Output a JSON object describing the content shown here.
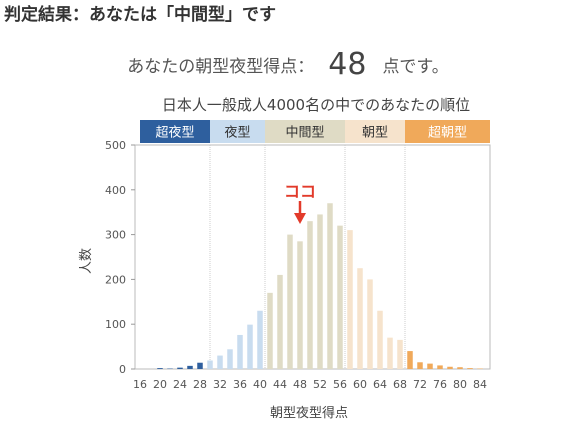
{
  "heading": "判定結果：あなたは「中間型」です",
  "score": {
    "prefix": "あなたの朝型夜型得点：",
    "value": "48",
    "suffix": "点です。"
  },
  "chart_data": {
    "type": "bar",
    "title": "日本人一般成人4000名の中でのあなたの順位",
    "xlabel": "朝型夜型得点",
    "ylabel": "人数",
    "ylim": [
      0,
      500
    ],
    "yticks": [
      0,
      100,
      200,
      300,
      400,
      500
    ],
    "xticks": [
      16,
      20,
      24,
      28,
      32,
      36,
      40,
      44,
      48,
      52,
      56,
      60,
      64,
      68,
      72,
      76,
      80,
      84
    ],
    "x": [
      16,
      18,
      20,
      22,
      24,
      26,
      28,
      30,
      32,
      34,
      36,
      38,
      40,
      42,
      44,
      46,
      48,
      50,
      52,
      54,
      56,
      58,
      60,
      62,
      64,
      66,
      68,
      70,
      72,
      74,
      76,
      78,
      80,
      82,
      84
    ],
    "values": [
      0,
      0,
      2,
      1,
      3,
      7,
      14,
      19,
      30,
      44,
      76,
      99,
      130,
      170,
      210,
      300,
      285,
      330,
      345,
      370,
      320,
      310,
      225,
      200,
      130,
      70,
      65,
      40,
      15,
      12,
      8,
      5,
      4,
      2,
      1
    ],
    "categories_bands": [
      {
        "label": "超夜型",
        "start": 16,
        "end": 30,
        "color": "#2e5f9e",
        "text_color": "#ffffff"
      },
      {
        "label": "夜型",
        "start": 30,
        "end": 41,
        "color": "#c8dcef",
        "text_color": "#333333"
      },
      {
        "label": "中間型",
        "start": 41,
        "end": 57,
        "color": "#dfdbc5",
        "text_color": "#333333"
      },
      {
        "label": "朝型",
        "start": 57,
        "end": 69,
        "color": "#f6e3cc",
        "text_color": "#333333"
      },
      {
        "label": "超朝型",
        "start": 69,
        "end": 86,
        "color": "#f0a95a",
        "text_color": "#ffffff"
      }
    ],
    "bar_colors": [
      "#2e5f9e",
      "#c8dcef",
      "#dfdbc5",
      "#f6e3cc",
      "#f0a95a"
    ],
    "annotation": {
      "label": "ココ",
      "x": 48,
      "color": "#e23a2a"
    }
  }
}
